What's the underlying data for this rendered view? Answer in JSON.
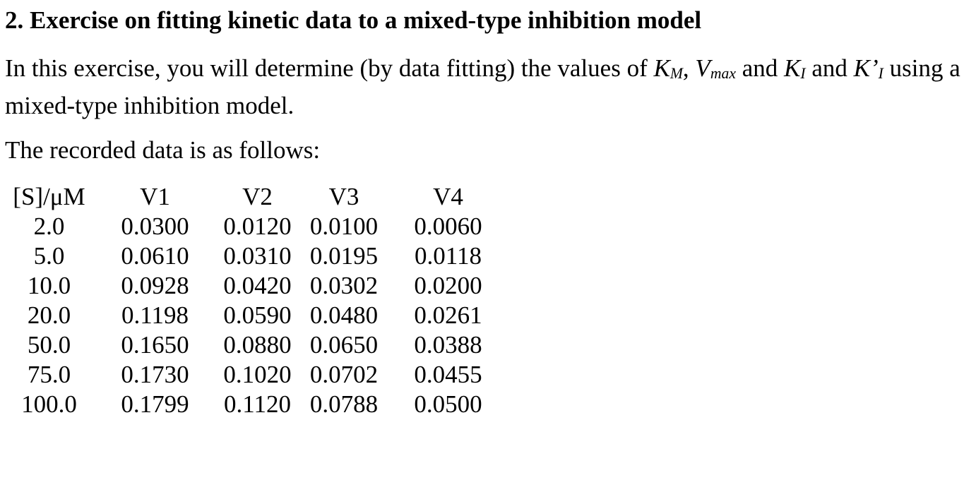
{
  "heading": "2. Exercise on fitting kinetic data to a mixed-type inhibition model",
  "intro": {
    "text_before": "In this exercise, you will determine (by data fitting) the values of ",
    "km_base": "K",
    "km_sub": "M",
    "sep1": ", ",
    "vmax_base": "V",
    "vmax_sub": "max",
    "sep2": " and ",
    "ki_base": "K",
    "ki_sub": "I",
    "sep3": " and ",
    "kiprime_base": "K’",
    "kiprime_sub": "I",
    "text_after": " using a",
    "line2": "mixed-type inhibition model."
  },
  "data_intro": "The recorded data is as follows:",
  "table": {
    "headers": [
      "[S]/μM",
      "V1",
      "V2",
      "V3",
      "V4"
    ],
    "rows": [
      [
        "2.0",
        "0.0300",
        "0.0120",
        "0.0100",
        "0.0060"
      ],
      [
        "5.0",
        "0.0610",
        "0.0310",
        "0.0195",
        "0.0118"
      ],
      [
        "10.0",
        "0.0928",
        "0.0420",
        "0.0302",
        "0.0200"
      ],
      [
        "20.0",
        "0.1198",
        "0.0590",
        "0.0480",
        "0.0261"
      ],
      [
        "50.0",
        "0.1650",
        "0.0880",
        "0.0650",
        "0.0388"
      ],
      [
        "75.0",
        "0.1730",
        "0.1020",
        "0.0702",
        "0.0455"
      ],
      [
        "100.0",
        "0.1799",
        "0.1120",
        "0.0788",
        "0.0500"
      ]
    ]
  }
}
